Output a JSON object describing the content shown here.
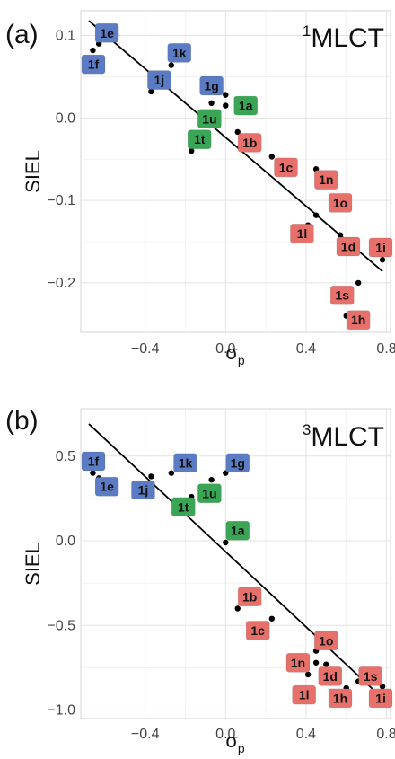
{
  "chart_data": [
    {
      "type": "scatter",
      "panel": "(a)",
      "state": {
        "sup": "1",
        "main": "MLCT"
      },
      "ylabel": "SIEL",
      "xlabel": {
        "base": "σ",
        "sub": "p"
      },
      "xlim": [
        -0.72,
        0.82
      ],
      "ylim": [
        -0.26,
        0.13
      ],
      "xticks": [
        {
          "v": -0.4,
          "label": "−0.4"
        },
        {
          "v": 0.0,
          "label": "0.0"
        },
        {
          "v": 0.4,
          "label": "0.4"
        },
        {
          "v": 0.8,
          "label": "0.8"
        }
      ],
      "yticks": [
        {
          "v": 0.1,
          "label": "0.1"
        },
        {
          "v": 0.0,
          "label": "0.0"
        },
        {
          "v": -0.1,
          "label": "−0.1"
        },
        {
          "v": -0.2,
          "label": "−0.2"
        }
      ],
      "grid": true,
      "fit_line": {
        "x": [
          -0.68,
          0.78
        ],
        "y": [
          0.118,
          -0.186
        ]
      },
      "group_colors": {
        "blue": "#5b7cc4",
        "green": "#3aa655",
        "red": "#e8706a"
      },
      "points": [
        {
          "label": "1e",
          "x": -0.63,
          "y": 0.09,
          "group": "blue",
          "lx": -0.59,
          "ly": 0.103
        },
        {
          "label": "1f",
          "x": -0.66,
          "y": 0.082,
          "group": "blue",
          "lx": -0.67,
          "ly": 0.065
        },
        {
          "label": "1k",
          "x": -0.27,
          "y": 0.064,
          "group": "blue",
          "lx": -0.23,
          "ly": 0.079
        },
        {
          "label": "1j",
          "x": -0.37,
          "y": 0.032,
          "group": "blue",
          "lx": -0.33,
          "ly": 0.046
        },
        {
          "label": "1g",
          "x": 0.0,
          "y": 0.028,
          "group": "blue",
          "lx": -0.07,
          "ly": 0.039
        },
        {
          "label": "1a",
          "x": 0.0,
          "y": 0.015,
          "group": "green",
          "lx": 0.1,
          "ly": 0.015
        },
        {
          "label": "1u",
          "x": -0.07,
          "y": 0.018,
          "group": "green",
          "lx": -0.08,
          "ly": -0.001
        },
        {
          "label": "1t",
          "x": -0.17,
          "y": -0.04,
          "group": "green",
          "lx": -0.13,
          "ly": -0.026
        },
        {
          "label": "1b",
          "x": 0.06,
          "y": -0.017,
          "group": "red",
          "lx": 0.12,
          "ly": -0.03
        },
        {
          "label": "1c",
          "x": 0.23,
          "y": -0.047,
          "group": "red",
          "lx": 0.3,
          "ly": -0.06
        },
        {
          "label": "1n",
          "x": 0.45,
          "y": -0.062,
          "group": "red",
          "lx": 0.5,
          "ly": -0.075
        },
        {
          "label": "1o",
          "x": 0.45,
          "y": -0.118,
          "group": "red",
          "lx": 0.57,
          "ly": -0.103
        },
        {
          "label": "1l",
          "x": 0.41,
          "y": -0.13,
          "group": "red",
          "lx": 0.38,
          "ly": -0.14
        },
        {
          "label": "1d",
          "x": 0.57,
          "y": -0.142,
          "group": "red",
          "lx": 0.61,
          "ly": -0.156
        },
        {
          "label": "1i",
          "x": 0.78,
          "y": -0.172,
          "group": "red",
          "lx": 0.83,
          "ly": -0.157
        },
        {
          "label": "1s",
          "x": 0.66,
          "y": -0.2,
          "group": "red",
          "lx": 0.58,
          "ly": -0.215
        },
        {
          "label": "1h",
          "x": 0.6,
          "y": -0.24,
          "group": "red",
          "lx": 0.66,
          "ly": -0.245
        }
      ]
    },
    {
      "type": "scatter",
      "panel": "(b)",
      "state": {
        "sup": "3",
        "main": "MLCT"
      },
      "ylabel": "SIEL",
      "xlabel": {
        "base": "σ",
        "sub": "p"
      },
      "xlim": [
        -0.72,
        0.82
      ],
      "ylim": [
        -1.05,
        0.78
      ],
      "xticks": [
        {
          "v": -0.4,
          "label": "−0.4"
        },
        {
          "v": 0.0,
          "label": "0.0"
        },
        {
          "v": 0.4,
          "label": "0.4"
        },
        {
          "v": 0.8,
          "label": "0.8"
        }
      ],
      "yticks": [
        {
          "v": 0.5,
          "label": "0.5"
        },
        {
          "v": 0.0,
          "label": "0.0"
        },
        {
          "v": -0.5,
          "label": "−0.5"
        },
        {
          "v": -1.0,
          "label": "−1.0"
        }
      ],
      "grid": true,
      "fit_line": {
        "x": [
          -0.68,
          0.78
        ],
        "y": [
          0.69,
          -0.93
        ]
      },
      "group_colors": {
        "blue": "#5b7cc4",
        "green": "#3aa655",
        "red": "#e8706a"
      },
      "points": [
        {
          "label": "1f",
          "x": -0.66,
          "y": 0.4,
          "group": "blue",
          "lx": -0.67,
          "ly": 0.47
        },
        {
          "label": "1e",
          "x": -0.63,
          "y": 0.37,
          "group": "blue",
          "lx": -0.59,
          "ly": 0.32
        },
        {
          "label": "1k",
          "x": -0.27,
          "y": 0.4,
          "group": "blue",
          "lx": -0.2,
          "ly": 0.46
        },
        {
          "label": "1j",
          "x": -0.37,
          "y": 0.38,
          "group": "blue",
          "lx": -0.41,
          "ly": 0.3
        },
        {
          "label": "1g",
          "x": 0.0,
          "y": 0.4,
          "group": "blue",
          "lx": 0.06,
          "ly": 0.46
        },
        {
          "label": "1u",
          "x": -0.07,
          "y": 0.36,
          "group": "green",
          "lx": -0.08,
          "ly": 0.28
        },
        {
          "label": "1t",
          "x": -0.17,
          "y": 0.26,
          "group": "green",
          "lx": -0.21,
          "ly": 0.2
        },
        {
          "label": "1a",
          "x": 0.0,
          "y": -0.01,
          "group": "green",
          "lx": 0.06,
          "ly": 0.06
        },
        {
          "label": "1b",
          "x": 0.06,
          "y": -0.4,
          "group": "red",
          "lx": 0.12,
          "ly": -0.33
        },
        {
          "label": "1c",
          "x": 0.23,
          "y": -0.46,
          "group": "red",
          "lx": 0.16,
          "ly": -0.53
        },
        {
          "label": "1o",
          "x": 0.45,
          "y": -0.65,
          "group": "red",
          "lx": 0.5,
          "ly": -0.59
        },
        {
          "label": "1n",
          "x": 0.45,
          "y": -0.72,
          "group": "red",
          "lx": 0.36,
          "ly": -0.72
        },
        {
          "label": "1d",
          "x": 0.5,
          "y": -0.73,
          "group": "red",
          "lx": 0.52,
          "ly": -0.8
        },
        {
          "label": "1l",
          "x": 0.41,
          "y": -0.79,
          "group": "red",
          "lx": 0.39,
          "ly": -0.91
        },
        {
          "label": "1s",
          "x": 0.66,
          "y": -0.83,
          "group": "red",
          "lx": 0.72,
          "ly": -0.8
        },
        {
          "label": "1h",
          "x": 0.6,
          "y": -0.87,
          "group": "red",
          "lx": 0.57,
          "ly": -0.93
        },
        {
          "label": "1i",
          "x": 0.78,
          "y": -0.86,
          "group": "red",
          "lx": 0.79,
          "ly": -0.93
        }
      ]
    }
  ]
}
